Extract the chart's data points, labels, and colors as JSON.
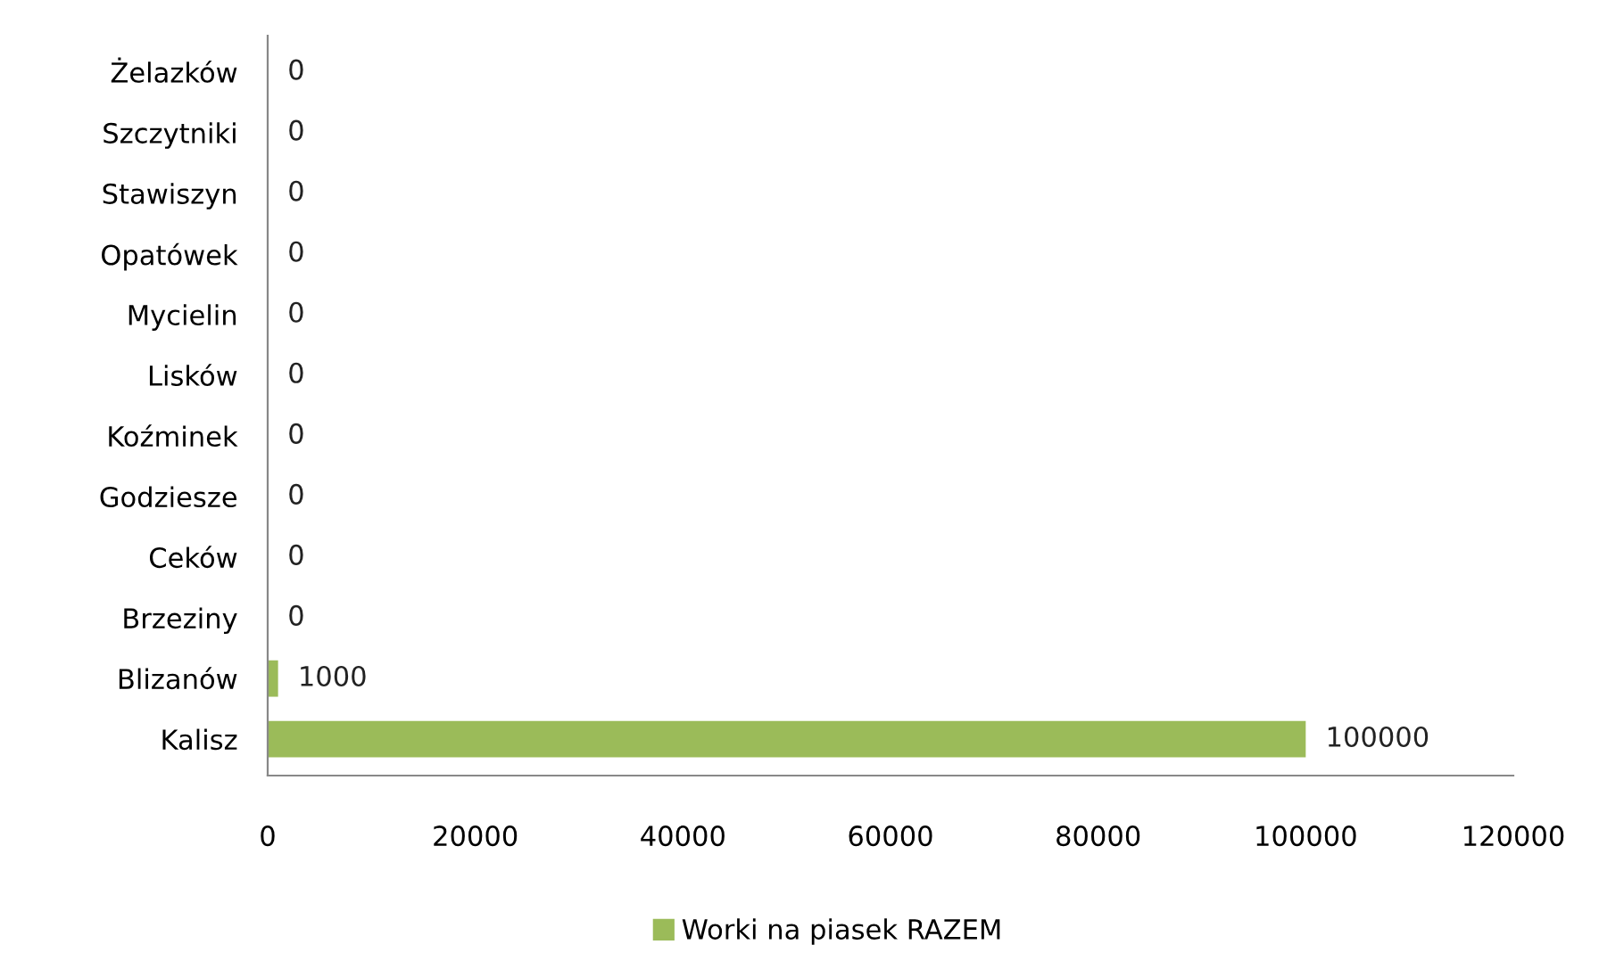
{
  "chart_data": {
    "type": "bar",
    "orientation": "horizontal",
    "categories": [
      "Żelazków",
      "Szczytniki",
      "Stawiszyn",
      "Opatówek",
      "Mycielin",
      "Lisków",
      "Koźminek",
      "Godziesze",
      "Ceków",
      "Brzeziny",
      "Blizanów",
      "Kalisz"
    ],
    "series": [
      {
        "name": "Worki na piasek RAZEM",
        "color": "#9bbb59",
        "values": [
          0,
          0,
          0,
          0,
          0,
          0,
          0,
          0,
          0,
          0,
          1000,
          100000
        ]
      }
    ],
    "xlim": [
      0,
      120000
    ],
    "xticks": [
      0,
      20000,
      40000,
      60000,
      80000,
      100000,
      120000
    ],
    "data_labels": true,
    "legend": "bottom",
    "grid": false
  }
}
